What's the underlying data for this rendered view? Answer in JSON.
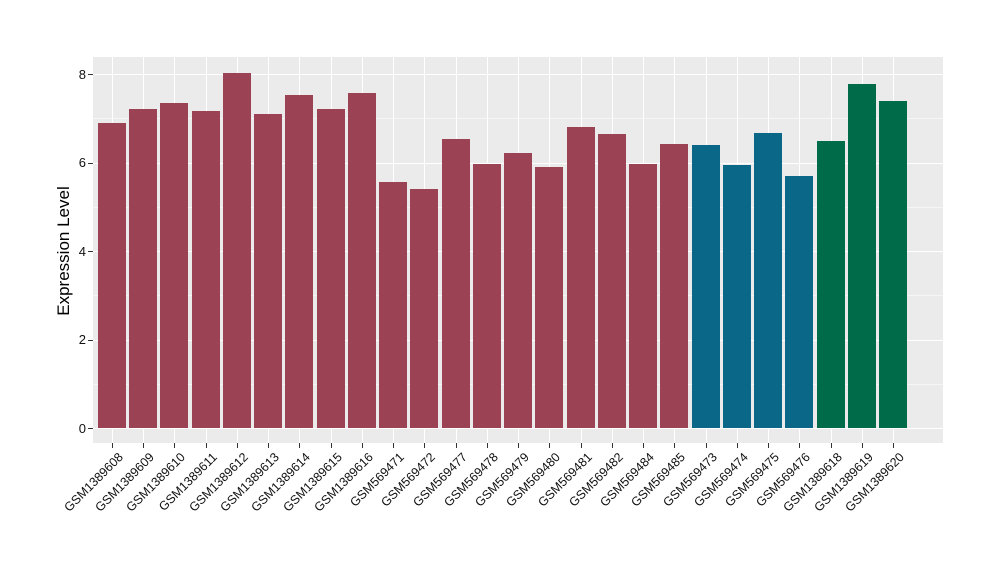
{
  "chart_data": {
    "type": "bar",
    "title": "",
    "xlabel": "",
    "ylabel": "Expression Level",
    "ylim": [
      0,
      8.4
    ],
    "y_ticks": [
      0,
      2,
      4,
      6,
      8
    ],
    "y_tick_labels": [
      "0",
      "2",
      "4",
      "6",
      "8"
    ],
    "y_minor_ticks": [
      1,
      3,
      5,
      7
    ],
    "grid": "on",
    "legend_position": "none",
    "panel_background": "#EBEBEB",
    "grid_color": "#FFFFFF",
    "tick_color": "#333333",
    "text_color": "#111111",
    "group_colors": {
      "group1": "#9B4254",
      "group2": "#0B6787",
      "group3": "#006B48"
    },
    "categories": [
      "GSM1389608",
      "GSM1389609",
      "GSM1389610",
      "GSM1389611",
      "GSM1389612",
      "GSM1389613",
      "GSM1389614",
      "GSM1389615",
      "GSM1389616",
      "GSM569471",
      "GSM569472",
      "GSM569477",
      "GSM569478",
      "GSM569479",
      "GSM569480",
      "GSM569481",
      "GSM569482",
      "GSM569484",
      "GSM569485",
      "GSM569473",
      "GSM569474",
      "GSM569475",
      "GSM569476",
      "GSM1389618",
      "GSM1389619",
      "GSM1389620"
    ],
    "bars": [
      {
        "label": "GSM1389608",
        "value": 6.89,
        "group": "group1",
        "color": "#9B4254"
      },
      {
        "label": "GSM1389609",
        "value": 7.2,
        "group": "group1",
        "color": "#9B4254"
      },
      {
        "label": "GSM1389610",
        "value": 7.34,
        "group": "group1",
        "color": "#9B4254"
      },
      {
        "label": "GSM1389611",
        "value": 7.17,
        "group": "group1",
        "color": "#9B4254"
      },
      {
        "label": "GSM1389612",
        "value": 8.02,
        "group": "group1",
        "color": "#9B4254"
      },
      {
        "label": "GSM1389613",
        "value": 7.1,
        "group": "group1",
        "color": "#9B4254"
      },
      {
        "label": "GSM1389614",
        "value": 7.52,
        "group": "group1",
        "color": "#9B4254"
      },
      {
        "label": "GSM1389615",
        "value": 7.22,
        "group": "group1",
        "color": "#9B4254"
      },
      {
        "label": "GSM1389616",
        "value": 7.57,
        "group": "group1",
        "color": "#9B4254"
      },
      {
        "label": "GSM569471",
        "value": 5.55,
        "group": "group1",
        "color": "#9B4254"
      },
      {
        "label": "GSM569472",
        "value": 5.4,
        "group": "group1",
        "color": "#9B4254"
      },
      {
        "label": "GSM569477",
        "value": 6.54,
        "group": "group1",
        "color": "#9B4254"
      },
      {
        "label": "GSM569478",
        "value": 5.97,
        "group": "group1",
        "color": "#9B4254"
      },
      {
        "label": "GSM569479",
        "value": 6.21,
        "group": "group1",
        "color": "#9B4254"
      },
      {
        "label": "GSM569480",
        "value": 5.91,
        "group": "group1",
        "color": "#9B4254"
      },
      {
        "label": "GSM569481",
        "value": 6.81,
        "group": "group1",
        "color": "#9B4254"
      },
      {
        "label": "GSM569482",
        "value": 6.64,
        "group": "group1",
        "color": "#9B4254"
      },
      {
        "label": "GSM569484",
        "value": 5.97,
        "group": "group1",
        "color": "#9B4254"
      },
      {
        "label": "GSM569485",
        "value": 6.41,
        "group": "group1",
        "color": "#9B4254"
      },
      {
        "label": "GSM569473",
        "value": 6.4,
        "group": "group2",
        "color": "#0B6787"
      },
      {
        "label": "GSM569474",
        "value": 5.94,
        "group": "group2",
        "color": "#0B6787"
      },
      {
        "label": "GSM569475",
        "value": 6.67,
        "group": "group2",
        "color": "#0B6787"
      },
      {
        "label": "GSM569476",
        "value": 5.69,
        "group": "group2",
        "color": "#0B6787"
      },
      {
        "label": "GSM1389618",
        "value": 6.49,
        "group": "group3",
        "color": "#006B48"
      },
      {
        "label": "GSM1389619",
        "value": 7.77,
        "group": "group3",
        "color": "#006B48"
      },
      {
        "label": "GSM1389620",
        "value": 7.38,
        "group": "group3",
        "color": "#006B48"
      }
    ]
  }
}
